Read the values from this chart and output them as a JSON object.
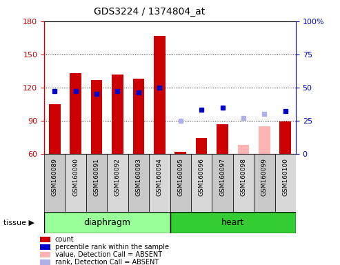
{
  "title": "GDS3224 / 1374804_at",
  "samples": [
    "GSM160089",
    "GSM160090",
    "GSM160091",
    "GSM160092",
    "GSM160093",
    "GSM160094",
    "GSM160095",
    "GSM160096",
    "GSM160097",
    "GSM160098",
    "GSM160099",
    "GSM160100"
  ],
  "count_values": [
    105,
    133,
    127,
    132,
    128,
    167,
    62,
    74,
    87,
    null,
    null,
    89
  ],
  "percentile_values": [
    47,
    47,
    45,
    47,
    46,
    50,
    null,
    33,
    35,
    null,
    null,
    32
  ],
  "absent_value_values": [
    null,
    null,
    null,
    null,
    null,
    null,
    null,
    null,
    null,
    68,
    85,
    null
  ],
  "absent_rank_values": [
    null,
    null,
    null,
    null,
    null,
    null,
    25,
    null,
    null,
    27,
    30,
    null
  ],
  "ylim_left": [
    60,
    180
  ],
  "ylim_right": [
    0,
    100
  ],
  "yticks_left": [
    60,
    90,
    120,
    150,
    180
  ],
  "yticks_right": [
    0,
    25,
    50,
    75,
    100
  ],
  "bar_baseline": 60,
  "bar_width": 0.55,
  "bar_color": "#cc0000",
  "absent_bar_color": "#ffb3b3",
  "percentile_color": "#0000cc",
  "absent_rank_color": "#b0b0e8",
  "tissue_color_diaphragm": "#99ff99",
  "tissue_color_heart": "#33cc33",
  "tissue_label_diaphragm": "diaphragm",
  "tissue_label_heart": "heart",
  "left_axis_color": "#cc0000",
  "right_axis_color": "#0000cc",
  "gridline_ticks": [
    90,
    120,
    150
  ],
  "n_diaphragm": 6,
  "n_heart": 6,
  "legend_items": [
    {
      "color": "#cc0000",
      "label": "count"
    },
    {
      "color": "#0000cc",
      "label": "percentile rank within the sample"
    },
    {
      "color": "#ffb3b3",
      "label": "value, Detection Call = ABSENT"
    },
    {
      "color": "#b0b0e8",
      "label": "rank, Detection Call = ABSENT"
    }
  ]
}
